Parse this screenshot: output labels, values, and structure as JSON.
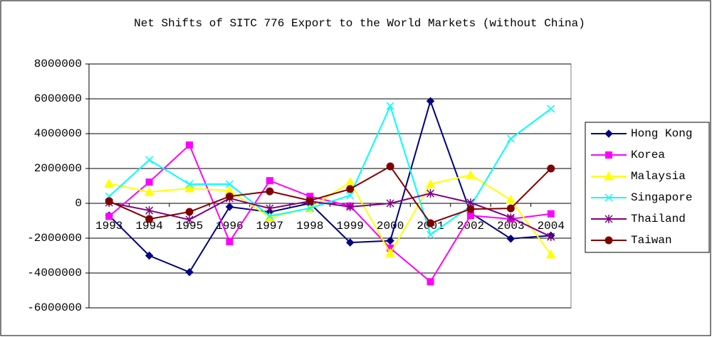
{
  "chart_data": {
    "type": "line",
    "title": "Net Shifts of SITC 776 Export to the World Markets (without China)",
    "categories": [
      "1993",
      "1994",
      "1995",
      "1996",
      "1997",
      "1998",
      "1999",
      "2000",
      "2001",
      "2002",
      "2003",
      "2004"
    ],
    "ylim": [
      -6000000,
      8000000
    ],
    "yticks": [
      -6000000,
      -4000000,
      -2000000,
      0,
      2000000,
      4000000,
      6000000,
      8000000
    ],
    "grid": true,
    "legend": "right",
    "series": [
      {
        "name": "Hong Kong",
        "color": "#000080",
        "marker": "diamond",
        "values": [
          -700000,
          -3000000,
          -3950000,
          -200000,
          -500000,
          0,
          -2250000,
          -2150000,
          5870000,
          -550000,
          -2030000,
          -1850000
        ]
      },
      {
        "name": "Korea",
        "color": "#FF00FF",
        "marker": "square",
        "values": [
          -750000,
          1220000,
          3350000,
          -2200000,
          1300000,
          400000,
          -150000,
          -2570000,
          -4500000,
          -700000,
          -900000,
          -600000
        ]
      },
      {
        "name": "Malaysia",
        "color": "#FFFF00",
        "marker": "triangle",
        "values": [
          1140000,
          650000,
          860000,
          730000,
          -800000,
          -280000,
          1220000,
          -2860000,
          1100000,
          1630000,
          200000,
          -2940000
        ]
      },
      {
        "name": "Singapore",
        "color": "#00FFFF",
        "marker": "x",
        "values": [
          400000,
          2490000,
          1100000,
          1100000,
          -730000,
          -280000,
          450000,
          5590000,
          -1800000,
          -160000,
          3710000,
          5430000
        ]
      },
      {
        "name": "Thailand",
        "color": "#800080",
        "marker": "star",
        "values": [
          40000,
          -410000,
          -940000,
          290000,
          -290000,
          120000,
          -200000,
          0,
          570000,
          40000,
          -820000,
          -1920000
        ]
      },
      {
        "name": "Taiwan",
        "color": "#800000",
        "marker": "circle",
        "values": [
          120000,
          -900000,
          -490000,
          400000,
          690000,
          160000,
          820000,
          2120000,
          -1140000,
          -330000,
          -290000,
          2000000
        ]
      }
    ]
  }
}
